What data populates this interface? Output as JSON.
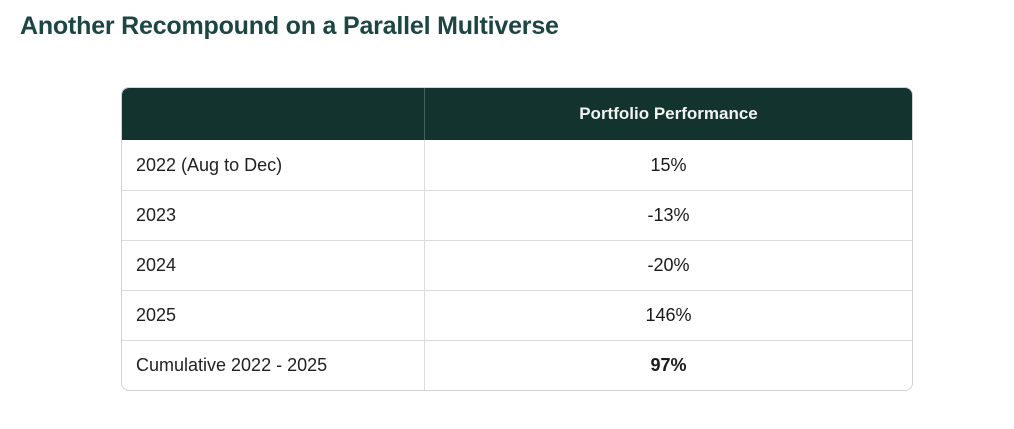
{
  "title": "Another Recompound on a Parallel Multiverse",
  "colors": {
    "title_text": "#1c4644",
    "header_background": "#13332f",
    "header_text": "#f1f3f2",
    "table_border": "#d2d2d2",
    "row_divider": "#dcdcdc",
    "body_text": "#212121"
  },
  "chart_data": {
    "type": "table",
    "title": "Another Recompound on a Parallel Multiverse",
    "columns": [
      "",
      "Portfolio Performance"
    ],
    "rows": [
      [
        "2022 (Aug to Dec)",
        "15%"
      ],
      [
        "2023",
        "-13%"
      ],
      [
        "2024",
        "-20%"
      ],
      [
        "2025",
        "146%"
      ],
      [
        "Cumulative 2022 - 2025",
        "97%"
      ]
    ],
    "notes": {
      "value_alignment": "center",
      "label_alignment": "left",
      "last_row_value_bold": true
    }
  }
}
